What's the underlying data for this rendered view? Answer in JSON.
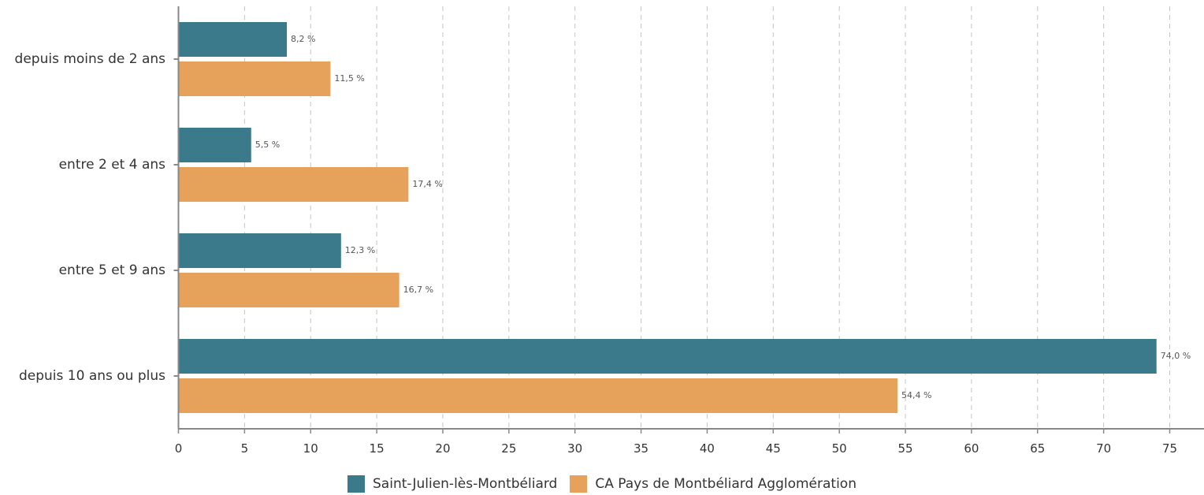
{
  "chart_data": {
    "type": "bar",
    "orientation": "horizontal",
    "categories": [
      "depuis moins de 2 ans",
      "entre 2 et 4 ans",
      "entre 5 et 9 ans",
      "depuis 10 ans ou plus"
    ],
    "series": [
      {
        "name": "Saint-Julien-lès-Montbéliard",
        "color": "#3a7a8a",
        "values": [
          8.2,
          5.5,
          12.3,
          74.0
        ],
        "labels": [
          "8,2 %",
          "5,5 %",
          "12,3 %",
          "74,0 %"
        ]
      },
      {
        "name": "CA Pays de Montbéliard Agglomération",
        "color": "#e6a15a",
        "values": [
          11.5,
          17.4,
          16.7,
          54.4
        ],
        "labels": [
          "11,5 %",
          "17,4 %",
          "16,7 %",
          "54,4 %"
        ]
      }
    ],
    "xlim": [
      0,
      77
    ],
    "xticks": [
      0,
      5,
      10,
      15,
      20,
      25,
      30,
      35,
      40,
      45,
      50,
      55,
      60,
      65,
      70,
      75
    ],
    "grid": "vertical-dashed",
    "legend_position": "bottom"
  }
}
